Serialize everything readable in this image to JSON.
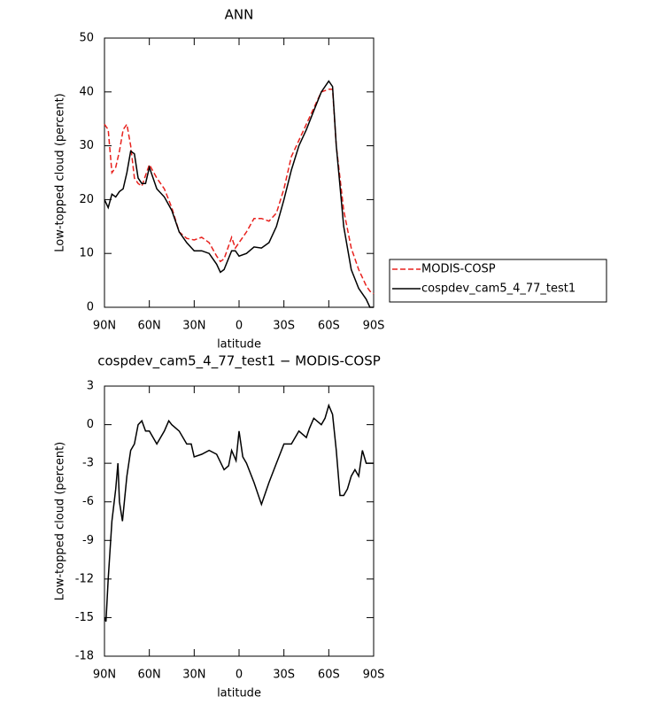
{
  "chart_data": [
    {
      "type": "line",
      "title": "ANN",
      "x_label": "latitude",
      "y_label": "Low-topped cloud (percent)",
      "x": [
        90,
        87.5,
        85,
        82.5,
        80,
        77.5,
        75,
        72.5,
        70,
        67.5,
        65,
        62.5,
        60,
        55,
        50,
        45,
        40,
        35,
        30,
        25,
        20,
        15,
        12.5,
        10,
        5,
        2.5,
        0,
        -5,
        -10,
        -15,
        -20,
        -25,
        -30,
        -35,
        -40,
        -45,
        -50,
        -55,
        -60,
        -62.5,
        -65,
        -70,
        -75,
        -80,
        -85,
        -87.5,
        -90
      ],
      "series": [
        {
          "name": "MODIS-COSP",
          "color": "#e8211d",
          "dashed": true,
          "values": [
            34,
            33,
            25,
            26,
            29,
            33,
            34,
            30,
            24,
            23,
            22.5,
            24.5,
            26.5,
            24,
            22,
            18.5,
            14,
            12.8,
            12.5,
            13,
            12,
            9.5,
            8.5,
            9,
            13,
            11,
            12,
            14,
            16.5,
            16.5,
            16,
            17.5,
            22,
            28,
            31,
            34,
            37,
            40,
            40.5,
            40.5,
            30,
            18,
            11,
            7,
            4,
            3,
            2.5
          ]
        },
        {
          "name": "cospdev_cam5_4_77_test1",
          "color": "#000000",
          "dashed": false,
          "values": [
            20,
            18.5,
            21,
            20.5,
            21.5,
            22,
            25,
            29,
            28.5,
            24,
            23,
            23,
            26,
            22,
            20.5,
            18,
            14,
            12,
            10.5,
            10.5,
            10,
            8,
            6.5,
            7,
            10.5,
            10.5,
            9.5,
            10,
            11.2,
            11,
            12,
            15,
            20,
            25.5,
            30,
            33,
            36.5,
            40,
            42,
            41,
            30,
            15,
            7,
            3.5,
            1.5,
            0,
            0
          ]
        }
      ],
      "xlim": [
        90,
        -90
      ],
      "xticks": [
        {
          "value": 90,
          "label": "90N"
        },
        {
          "value": 60,
          "label": "60N"
        },
        {
          "value": 30,
          "label": "30N"
        },
        0,
        {
          "value": -30,
          "label": "30S"
        },
        {
          "value": -60,
          "label": "60S"
        },
        {
          "value": -90,
          "label": "90S"
        }
      ],
      "ylim": [
        0,
        50
      ],
      "yticks": [
        0,
        10,
        20,
        30,
        40,
        50
      ],
      "legend": "right"
    },
    {
      "type": "line",
      "title": "cospdev_cam5_4_77_test1 − MODIS-COSP",
      "x_label": "latitude",
      "y_label": "Low-topped cloud (percent)",
      "x": [
        90,
        89,
        87.5,
        85,
        82.5,
        81,
        80,
        78,
        75,
        72.5,
        70,
        67.5,
        65,
        62.5,
        60,
        55,
        50,
        47,
        45,
        40,
        35,
        32,
        30,
        25,
        20,
        15,
        10,
        7,
        5,
        2,
        0,
        -2.5,
        -5,
        -10,
        -15,
        -20,
        -25,
        -30,
        -35,
        -40,
        -45,
        -47,
        -50,
        -55,
        -57.5,
        -60,
        -62.5,
        -65,
        -67.5,
        -70,
        -72.5,
        -75,
        -77.5,
        -80,
        -82.5,
        -85,
        -87.5,
        -90
      ],
      "series": [
        {
          "color": "#000000",
          "dashed": false,
          "values": [
            -15,
            -15.3,
            -12,
            -7.5,
            -5,
            -3,
            -6,
            -7.5,
            -4,
            -2,
            -1.5,
            0,
            0.3,
            -0.5,
            -0.5,
            -1.5,
            -0.5,
            0.3,
            0,
            -0.5,
            -1.5,
            -1.5,
            -2.5,
            -2.3,
            -2,
            -2.3,
            -3.5,
            -3.2,
            -2,
            -2.8,
            -0.5,
            -2.5,
            -3,
            -4.5,
            -6.2,
            -4.5,
            -3,
            -1.5,
            -1.5,
            -0.5,
            -1,
            -0.3,
            0.5,
            0,
            0.5,
            1.5,
            0.8,
            -2,
            -5.5,
            -5.5,
            -5,
            -4,
            -3.5,
            -4,
            -2,
            -3,
            -3,
            -3
          ]
        }
      ],
      "xlim": [
        90,
        -90
      ],
      "xticks": [
        {
          "value": 90,
          "label": "90N"
        },
        {
          "value": 60,
          "label": "60N"
        },
        {
          "value": 30,
          "label": "30N"
        },
        0,
        {
          "value": -30,
          "label": "30S"
        },
        {
          "value": -60,
          "label": "60S"
        },
        {
          "value": -90,
          "label": "90S"
        }
      ],
      "ylim": [
        -18,
        3
      ],
      "yticks": [
        -18,
        -15,
        -12,
        -9,
        -6,
        -3,
        0,
        3
      ]
    }
  ]
}
